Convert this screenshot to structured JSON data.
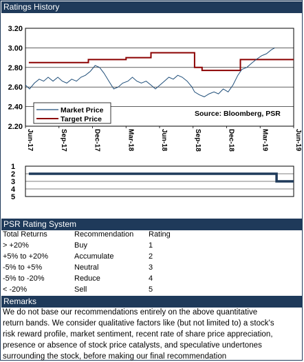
{
  "ratings_history": {
    "title": "Ratings History"
  },
  "chart_data": [
    {
      "type": "line",
      "title": "",
      "x_tick_labels": [
        "Jun-17",
        "Sep-17",
        "Dec-17",
        "Mar-18",
        "Jun-18",
        "Sep-18",
        "Dec-18",
        "Mar-19",
        "Jun-19"
      ],
      "y_tick_labels": [
        "2.20",
        "2.40",
        "2.60",
        "2.80",
        "3.00",
        "3.20"
      ],
      "ylim": [
        2.2,
        3.2
      ],
      "grid": "horizontal",
      "legend_placement": "lower-left",
      "source_label": "Source: Bloomberg, PSR",
      "series": [
        {
          "name": "Market Price",
          "color": "#1f4e79",
          "points": [
            [
              "2017-06-01",
              2.62
            ],
            [
              "2017-06-12",
              2.58
            ],
            [
              "2017-06-25",
              2.64
            ],
            [
              "2017-07-08",
              2.68
            ],
            [
              "2017-07-20",
              2.66
            ],
            [
              "2017-08-02",
              2.7
            ],
            [
              "2017-08-15",
              2.66
            ],
            [
              "2017-08-28",
              2.7
            ],
            [
              "2017-09-10",
              2.66
            ],
            [
              "2017-09-22",
              2.64
            ],
            [
              "2017-10-05",
              2.68
            ],
            [
              "2017-10-18",
              2.66
            ],
            [
              "2017-10-30",
              2.7
            ],
            [
              "2017-11-12",
              2.72
            ],
            [
              "2017-11-25",
              2.76
            ],
            [
              "2017-12-08",
              2.82
            ],
            [
              "2017-12-20",
              2.8
            ],
            [
              "2018-01-02",
              2.74
            ],
            [
              "2018-01-15",
              2.66
            ],
            [
              "2018-01-28",
              2.58
            ],
            [
              "2018-02-10",
              2.6
            ],
            [
              "2018-02-22",
              2.64
            ],
            [
              "2018-03-06",
              2.66
            ],
            [
              "2018-03-18",
              2.7
            ],
            [
              "2018-03-30",
              2.66
            ],
            [
              "2018-04-12",
              2.64
            ],
            [
              "2018-04-25",
              2.66
            ],
            [
              "2018-05-08",
              2.62
            ],
            [
              "2018-05-20",
              2.58
            ],
            [
              "2018-06-02",
              2.62
            ],
            [
              "2018-06-14",
              2.66
            ],
            [
              "2018-06-26",
              2.7
            ],
            [
              "2018-07-08",
              2.68
            ],
            [
              "2018-07-20",
              2.72
            ],
            [
              "2018-08-02",
              2.7
            ],
            [
              "2018-08-15",
              2.66
            ],
            [
              "2018-08-28",
              2.6
            ],
            [
              "2018-09-05",
              2.55
            ],
            [
              "2018-09-18",
              2.52
            ],
            [
              "2018-10-01",
              2.5
            ],
            [
              "2018-10-14",
              2.53
            ],
            [
              "2018-10-27",
              2.55
            ],
            [
              "2018-11-09",
              2.53
            ],
            [
              "2018-11-22",
              2.58
            ],
            [
              "2018-12-05",
              2.55
            ],
            [
              "2018-12-18",
              2.62
            ],
            [
              "2018-12-31",
              2.72
            ],
            [
              "2019-01-12",
              2.78
            ],
            [
              "2019-01-25",
              2.8
            ],
            [
              "2019-02-07",
              2.84
            ],
            [
              "2019-02-20",
              2.88
            ],
            [
              "2019-03-05",
              2.92
            ],
            [
              "2019-03-18",
              2.94
            ],
            [
              "2019-03-31",
              2.98
            ],
            [
              "2019-04-10",
              3.0
            ]
          ]
        },
        {
          "name": "Target Price",
          "color": "#8b0000",
          "step": true,
          "points": [
            [
              "2017-06-10",
              2.85
            ],
            [
              "2017-11-20",
              2.85
            ],
            [
              "2017-11-20",
              2.88
            ],
            [
              "2018-03-01",
              2.88
            ],
            [
              "2018-03-01",
              2.9
            ],
            [
              "2018-05-08",
              2.9
            ],
            [
              "2018-05-08",
              2.95
            ],
            [
              "2018-09-05",
              2.95
            ],
            [
              "2018-09-05",
              2.8
            ],
            [
              "2018-09-25",
              2.8
            ],
            [
              "2018-09-25",
              2.77
            ],
            [
              "2019-01-08",
              2.77
            ],
            [
              "2019-01-08",
              2.88
            ],
            [
              "2019-06-01",
              2.88
            ]
          ]
        }
      ]
    },
    {
      "type": "line",
      "y_tick_labels": [
        "1",
        "2",
        "3",
        "4",
        "5"
      ],
      "ylim": [
        1,
        5
      ],
      "series": [
        {
          "name": "",
          "color": "#1f3a5a",
          "step": true,
          "points": [
            [
              "2017-06-10",
              2
            ],
            [
              "2019-04-15",
              2
            ],
            [
              "2019-04-15",
              3
            ],
            [
              "2019-06-01",
              3
            ]
          ]
        }
      ]
    }
  ],
  "rating_system": {
    "title": "PSR Rating System",
    "headers": [
      "Total Returns",
      "Recommendation",
      "Rating"
    ],
    "rows": [
      [
        "> +20%",
        "Buy",
        "1"
      ],
      [
        "+5% to +20%",
        "Accumulate",
        "2"
      ],
      [
        "-5% to +5%",
        "Neutral",
        "3"
      ],
      [
        "-5% to -20%",
        "Reduce",
        "4"
      ],
      [
        "< -20%",
        "Sell",
        "5"
      ]
    ]
  },
  "remarks": {
    "title": "Remarks",
    "lines": [
      "We do not base our recommendations entirely on the  above quantitative",
      "return bands.  We consider qualitative factors like (but not limited to) a stock's",
      "risk reward profile, market sentiment, recent rate of share price appreciation,",
      "presence or absence of stock price catalysts, and speculative undertones",
      "surrounding the stock, before making our final recommendation"
    ]
  }
}
